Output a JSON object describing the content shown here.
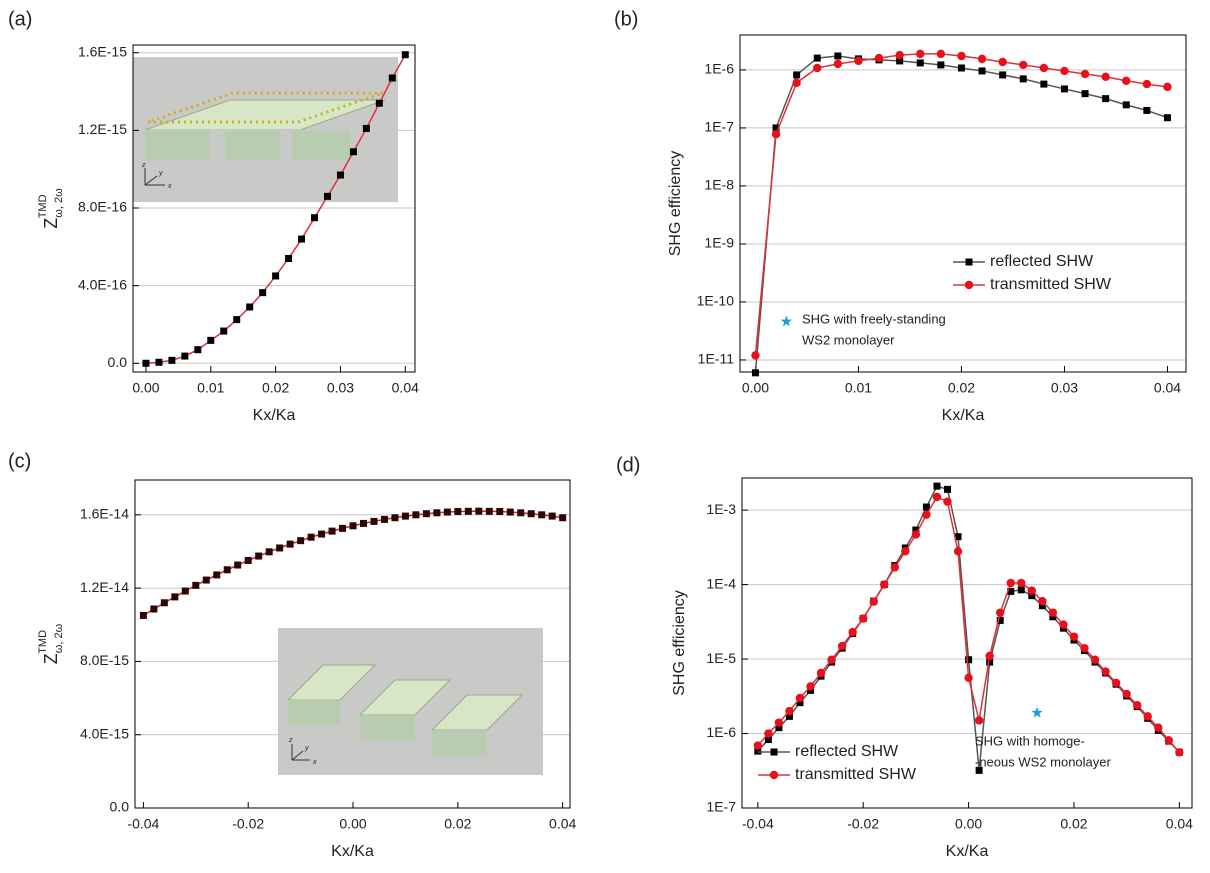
{
  "chart_data": [
    {
      "type": "line",
      "panel": "(a)",
      "xlabel": "Kx/Ka",
      "ylabel": {
        "main": "Z",
        "sup": "TMD",
        "sub": "ω, 2ω"
      },
      "x": [
        0,
        0.002,
        0.004,
        0.006,
        0.008,
        0.01,
        0.012,
        0.014,
        0.016,
        0.018,
        0.02,
        0.022,
        0.024,
        0.026,
        0.028,
        0.03,
        0.032,
        0.034,
        0.036,
        0.038,
        0.04
      ],
      "series": [
        {
          "color": "#e0303c",
          "marker_color": "#000000",
          "marker": "square",
          "values": [
            0,
            5e-18,
            1.5e-17,
            3.7e-17,
            7e-17,
            1.18e-16,
            1.66e-16,
            2.25e-16,
            2.9e-16,
            3.64e-16,
            4.5e-16,
            5.4e-16,
            6.4e-16,
            7.5e-16,
            8.6e-16,
            9.7e-16,
            1.09e-15,
            1.21e-15,
            1.34e-15,
            1.47e-15,
            1.59e-15
          ]
        }
      ],
      "xlim": [
        -0.002,
        0.0415
      ],
      "xticks": [
        {
          "value": 0,
          "label": "0.00"
        },
        0.01,
        0.02,
        0.03,
        0.04
      ],
      "ylim": [
        -4.5e-17,
        1.64e-15
      ],
      "yticks": [
        {
          "value": 0,
          "label": "0.0"
        },
        {
          "value": 4e-16,
          "label": "4.0E-16"
        },
        {
          "value": 8e-16,
          "label": "8.0E-16"
        },
        {
          "value": 1.2e-15,
          "label": "1.2E-15"
        },
        {
          "value": 1.6e-15,
          "label": "1.6E-15"
        }
      ],
      "grid": true,
      "log_y": false,
      "inset_axis_labels": [
        "x",
        "y",
        "z"
      ]
    },
    {
      "type": "line",
      "panel": "(b)",
      "xlabel": "Kx/Ka",
      "ylabel": "SHG efficiency",
      "x": [
        0,
        0.002,
        0.004,
        0.006,
        0.008,
        0.01,
        0.012,
        0.014,
        0.016,
        0.018,
        0.02,
        0.022,
        0.024,
        0.026,
        0.028,
        0.03,
        0.032,
        0.034,
        0.036,
        0.038,
        0.04
      ],
      "series": [
        {
          "name": "reflected SHW",
          "color": "#555555",
          "marker_color": "#000000",
          "marker": "square",
          "values": [
            6e-12,
            1e-07,
            8.2e-07,
            1.6e-06,
            1.74e-06,
            1.55e-06,
            1.49e-06,
            1.43e-06,
            1.32e-06,
            1.22e-06,
            1.08e-06,
            9.6e-07,
            8.2e-07,
            7e-07,
            5.7e-07,
            4.7e-07,
            3.9e-07,
            3.2e-07,
            2.5e-07,
            2e-07,
            1.5e-07
          ]
        },
        {
          "name": "transmitted SHW",
          "color": "#e0303c",
          "marker_color": "#e8101a",
          "marker": "circle",
          "values": [
            1.2e-11,
            7.8e-08,
            6e-07,
            1.08e-06,
            1.27e-06,
            1.43e-06,
            1.6e-06,
            1.8e-06,
            1.89e-06,
            1.89e-06,
            1.74e-06,
            1.55e-06,
            1.37e-06,
            1.22e-06,
            1.08e-06,
            9.6e-07,
            8.5e-07,
            7.6e-07,
            6.5e-07,
            5.7e-07,
            5.1e-07
          ]
        }
      ],
      "xlim": [
        -0.0015,
        0.0418
      ],
      "xticks": [
        {
          "value": 0,
          "label": "0.00"
        },
        0.01,
        0.02,
        0.03,
        0.04
      ],
      "ylim": [
        6.2e-12,
        4e-06
      ],
      "yticks": [
        {
          "value": 1e-11,
          "label": "1E-11"
        },
        {
          "value": 1e-10,
          "label": "1E-10"
        },
        {
          "value": 1e-09,
          "label": "1E-9"
        },
        {
          "value": 1e-08,
          "label": "1E-8"
        },
        {
          "value": 1e-07,
          "label": "1E-7"
        },
        {
          "value": 1e-06,
          "label": "1E-6"
        }
      ],
      "grid": true,
      "log_y": true,
      "legend": "lower right",
      "star": {
        "x": 0.003,
        "y": 4.6e-11,
        "color": "#1a9fd0"
      },
      "annotation": [
        "SHG with freely-standing",
        "WS2 monolayer"
      ]
    },
    {
      "type": "line",
      "panel": "(c)",
      "xlabel": "Kx/Ka",
      "ylabel": {
        "main": "Z",
        "sup": "TMD",
        "sub": "ω, 2ω"
      },
      "x": [
        -0.04,
        -0.038,
        -0.036,
        -0.034,
        -0.032,
        -0.03,
        -0.028,
        -0.026,
        -0.024,
        -0.022,
        -0.02,
        -0.018,
        -0.016,
        -0.014,
        -0.012,
        -0.01,
        -0.008,
        -0.006,
        -0.004,
        -0.002,
        0,
        0.002,
        0.004,
        0.006,
        0.008,
        0.01,
        0.012,
        0.014,
        0.016,
        0.018,
        0.02,
        0.022,
        0.024,
        0.026,
        0.028,
        0.03,
        0.032,
        0.034,
        0.036,
        0.038,
        0.04
      ],
      "series": [
        {
          "color": "#c0282e",
          "marker_color": "#2a0606",
          "marker": "square",
          "values": [
            1.051e-14,
            1.086e-14,
            1.12e-14,
            1.152e-14,
            1.184e-14,
            1.215e-14,
            1.244e-14,
            1.272e-14,
            1.3e-14,
            1.326e-14,
            1.351e-14,
            1.375e-14,
            1.398e-14,
            1.419e-14,
            1.44e-14,
            1.459e-14,
            1.478e-14,
            1.495e-14,
            1.511e-14,
            1.526e-14,
            1.54e-14,
            1.553e-14,
            1.564e-14,
            1.575e-14,
            1.584e-14,
            1.593e-14,
            1.6e-14,
            1.606e-14,
            1.611e-14,
            1.615e-14,
            1.618e-14,
            1.619e-14,
            1.62e-14,
            1.619e-14,
            1.618e-14,
            1.615e-14,
            1.611e-14,
            1.606e-14,
            1.6e-14,
            1.593e-14,
            1.584e-14
          ]
        }
      ],
      "xlim": [
        -0.0416,
        0.0414
      ],
      "xticks": [
        -0.04,
        -0.02,
        {
          "value": 0,
          "label": "0.00"
        },
        0.02,
        0.04
      ],
      "ylim": [
        0,
        1.79e-14
      ],
      "yticks": [
        {
          "value": 0,
          "label": "0.0"
        },
        {
          "value": 4e-15,
          "label": "4.0E-15"
        },
        {
          "value": 8e-15,
          "label": "8.0E-15"
        },
        {
          "value": 1.2e-14,
          "label": "1.2E-14"
        },
        {
          "value": 1.6e-14,
          "label": "1.6E-14"
        }
      ],
      "grid": true,
      "log_y": false,
      "inset_axis_labels": [
        "x",
        "y",
        "z"
      ]
    },
    {
      "type": "line",
      "panel": "(d)",
      "xlabel": "Kx/Ka",
      "ylabel": "SHG efficiency",
      "x": [
        -0.04,
        -0.038,
        -0.036,
        -0.034,
        -0.032,
        -0.03,
        -0.028,
        -0.026,
        -0.024,
        -0.022,
        -0.02,
        -0.018,
        -0.016,
        -0.014,
        -0.012,
        -0.01,
        -0.008,
        -0.006,
        -0.004,
        -0.002,
        0,
        0.002,
        0.004,
        0.006,
        0.008,
        0.01,
        0.012,
        0.014,
        0.016,
        0.018,
        0.02,
        0.022,
        0.024,
        0.026,
        0.028,
        0.03,
        0.032,
        0.034,
        0.036,
        0.038,
        0.04
      ],
      "series": [
        {
          "name": "reflected SHW",
          "color": "#555555",
          "marker_color": "#000000",
          "marker": "square",
          "values": [
            5.8e-07,
            8.3e-07,
            1.2e-06,
            1.7e-06,
            2.6e-06,
            3.8e-06,
            5.9e-06,
            9.1e-06,
            1.4e-05,
            2.2e-05,
            3.5e-05,
            6e-05,
            0.0001,
            0.00018,
            0.00031,
            0.00054,
            0.0011,
            0.0021,
            0.0019,
            0.00044,
            9.8e-06,
            3.2e-07,
            9.1e-06,
            3.3e-05,
            8.1e-05,
            8.5e-05,
            7.1e-05,
            5.2e-05,
            3.7e-05,
            2.6e-05,
            1.8e-05,
            1.3e-05,
            9.1e-06,
            6.5e-06,
            4.6e-06,
            3.2e-06,
            2.3e-06,
            1.6e-06,
            1.1e-06,
            7.9e-07,
            5.6e-07
          ]
        },
        {
          "name": "transmitted SHW",
          "color": "#e0303c",
          "marker_color": "#e8101a",
          "marker": "circle",
          "values": [
            6.9e-07,
            1e-06,
            1.4e-06,
            2e-06,
            3e-06,
            4.3e-06,
            6.5e-06,
            9.8e-06,
            1.5e-05,
            2.3e-05,
            3.5e-05,
            5.9e-05,
            0.0001,
            0.00017,
            0.00028,
            0.00047,
            0.00087,
            0.0015,
            0.0013,
            0.00028,
            5.6e-06,
            1.5e-06,
            1.1e-05,
            4.2e-05,
            0.000105,
            0.000105,
            8.3e-05,
            6e-05,
            4.2e-05,
            2.9e-05,
            2e-05,
            1.4e-05,
            9.8e-06,
            6.8e-06,
            4.8e-06,
            3.4e-06,
            2.4e-06,
            1.7e-06,
            1.2e-06,
            8.1e-07,
            5.6e-07
          ]
        }
      ],
      "xlim": [
        -0.043,
        0.0424
      ],
      "xticks": [
        -0.04,
        -0.02,
        {
          "value": 0,
          "label": "0.00"
        },
        0.02,
        0.04
      ],
      "ylim": [
        1e-07,
        0.0027
      ],
      "yticks": [
        {
          "value": 1e-07,
          "label": "1E-7"
        },
        {
          "value": 1e-06,
          "label": "1E-6"
        },
        {
          "value": 1e-05,
          "label": "1E-5"
        },
        {
          "value": 0.0001,
          "label": "1E-4"
        },
        {
          "value": 0.001,
          "label": "1E-3"
        }
      ],
      "grid": true,
      "log_y": true,
      "legend": "lower left",
      "star": {
        "x": 0.013,
        "y": 1.9e-06,
        "color": "#1a9fd0"
      },
      "annotation": [
        "SHG with homoge-",
        "-neous WS2 monolayer"
      ]
    }
  ]
}
